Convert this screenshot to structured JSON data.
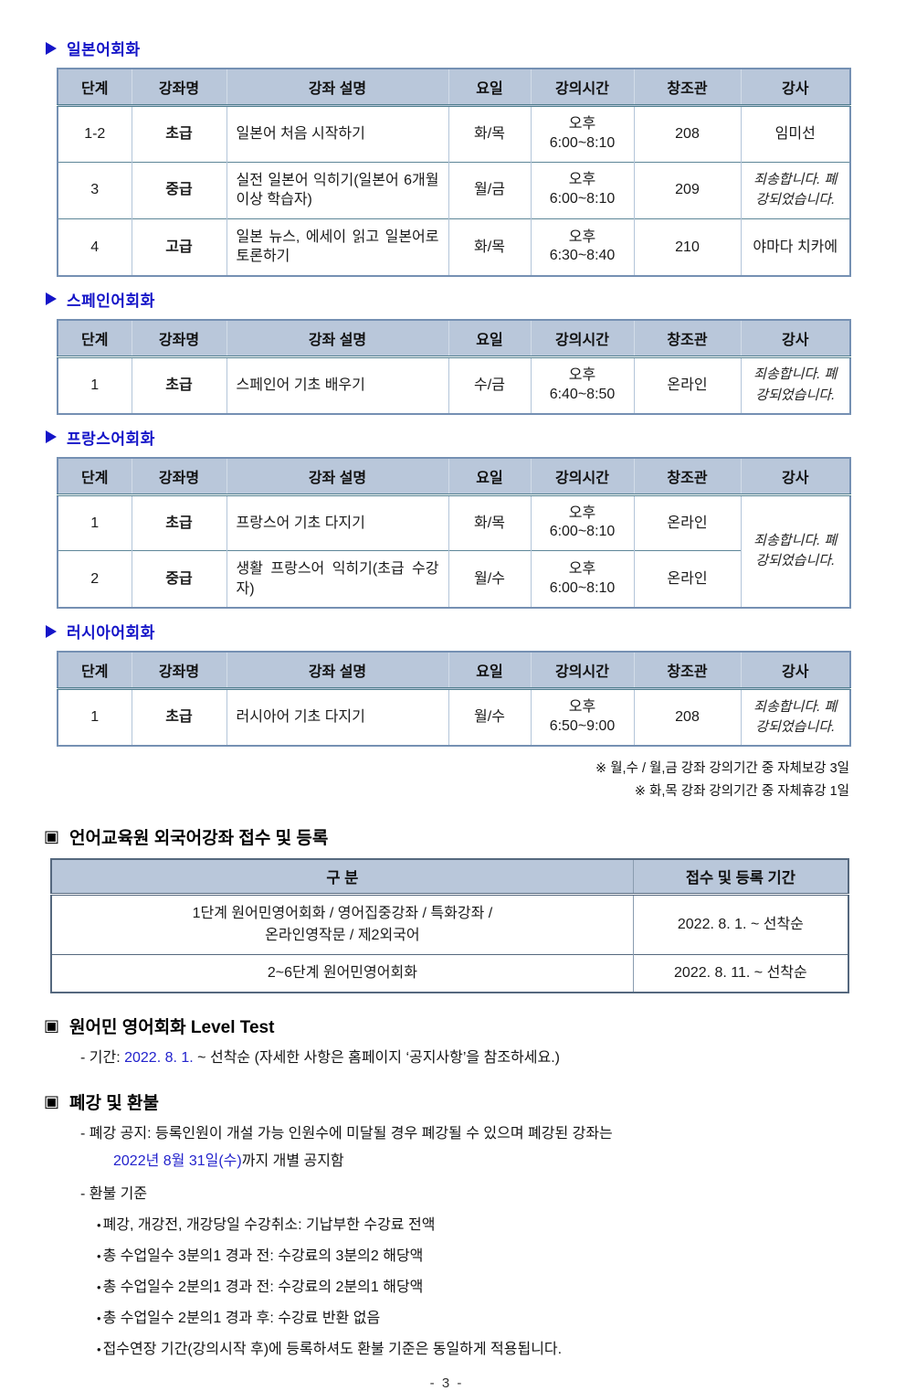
{
  "table_headers": [
    "단계",
    "강좌명",
    "강좌 설명",
    "요일",
    "강의시간",
    "창조관",
    "강사"
  ],
  "cancel_text": "죄송합니다. 폐강되었습니다.",
  "language_sections": [
    {
      "title": "일본어회화",
      "rows": [
        {
          "level": "1-2",
          "name": "초급",
          "desc": "일본어 처음 시작하기",
          "days": "화/목",
          "time_pm": "오후",
          "time_range": "6:00~8:10",
          "room": "208",
          "teacher": "임미선",
          "cancelled": false
        },
        {
          "level": "3",
          "name": "중급",
          "desc": "실전 일본어 익히기(일본어 6개월 이상 학습자)",
          "days": "월/금",
          "time_pm": "오후",
          "time_range": "6:00~8:10",
          "room": "209",
          "teacher": "죄송합니다. 폐강되었습니다.",
          "cancelled": true
        },
        {
          "level": "4",
          "name": "고급",
          "desc": "일본 뉴스, 에세이 읽고 일본어로 토론하기",
          "days": "화/목",
          "time_pm": "오후",
          "time_range": "6:30~8:40",
          "room": "210",
          "teacher": "야마다 치카에",
          "cancelled": false
        }
      ]
    },
    {
      "title": "스페인어회화",
      "rows": [
        {
          "level": "1",
          "name": "초급",
          "desc": "스페인어 기초 배우기",
          "days": "수/금",
          "time_pm": "오후",
          "time_range": "6:40~8:50",
          "room": "온라인",
          "teacher": "죄송합니다. 폐강되었습니다.",
          "cancelled": true
        }
      ]
    },
    {
      "title": "프랑스어회화",
      "rows": [
        {
          "level": "1",
          "name": "초급",
          "desc": "프랑스어 기초 다지기",
          "days": "화/목",
          "time_pm": "오후",
          "time_range": "6:00~8:10",
          "room": "온라인",
          "teacher": "죄송합니다. 폐강되었습니다.",
          "cancelled": true,
          "teacher_rowspan": 2
        },
        {
          "level": "2",
          "name": "중급",
          "desc": "생활 프랑스어 익히기(초급 수강자)",
          "days": "월/수",
          "time_pm": "오후",
          "time_range": "6:00~8:10",
          "room": "온라인",
          "teacher": null
        }
      ]
    },
    {
      "title": "러시아어회화",
      "rows": [
        {
          "level": "1",
          "name": "초급",
          "desc": "러시아어 기초 다지기",
          "days": "월/수",
          "time_pm": "오후",
          "time_range": "6:50~9:00",
          "room": "208",
          "teacher": "죄송합니다. 폐강되었습니다.",
          "cancelled": true
        }
      ]
    }
  ],
  "footnotes": [
    "※ 월,수 / 월,금 강좌 강의기간 중 자체보강 3일",
    "※ 화,목 강좌 강의기간 중 자체휴강 1일"
  ],
  "registration": {
    "title": "언어교육원 외국어강좌 접수 및 등록",
    "headers": [
      "구 분",
      "접수 및 등록 기간"
    ],
    "rows": [
      {
        "category_line1": "1단계 원어민영어회화 / 영어집중강좌 / 특화강좌 /",
        "category_line2": "온라인영작문 / 제2외국어",
        "period": "2022. 8. 1. ~ 선착순"
      },
      {
        "category_line1": "2~6단계 원어민영어회화",
        "category_line2": "",
        "period": "2022. 8. 11. ~ 선착순"
      }
    ]
  },
  "level_test": {
    "title": "원어민 영어회화 Level Test",
    "line_prefix": "- 기간: ",
    "line_date": "2022. 8. 1.",
    "line_rest": " ~ 선착순 (자세한 사항은 홈페이지 ‘공지사항’을 참조하세요.)"
  },
  "refund": {
    "title": "폐강 및 환불",
    "notice_line1": "- 폐강 공지: 등록인원이 개설 가능 인원수에 미달될 경우 폐강될 수 있으며 폐강된 강좌는",
    "notice_line2_blue": "2022년 8월 31일(수)",
    "notice_line2_rest": "까지 개별 공지함",
    "criteria_label": "- 환불 기준",
    "bullets": [
      "폐강, 개강전, 개강당일 수강취소: 기납부한 수강료 전액",
      "총 수업일수 3분의1 경과 전: 수강료의 3분의2 해당액",
      "총 수업일수 2분의1 경과 전: 수강료의 2분의1 해당액",
      "총 수업일수 2분의1 경과 후: 수강료 반환 없음",
      "접수연장 기간(강의시작 후)에 등록하셔도 환불 기준은 동일하게 적용됩니다."
    ]
  },
  "page_number": "- 3 -",
  "colors": {
    "title_blue": "#1414c8",
    "date_blue": "#2323cc",
    "table_header_bg": "#b9c7da"
  }
}
